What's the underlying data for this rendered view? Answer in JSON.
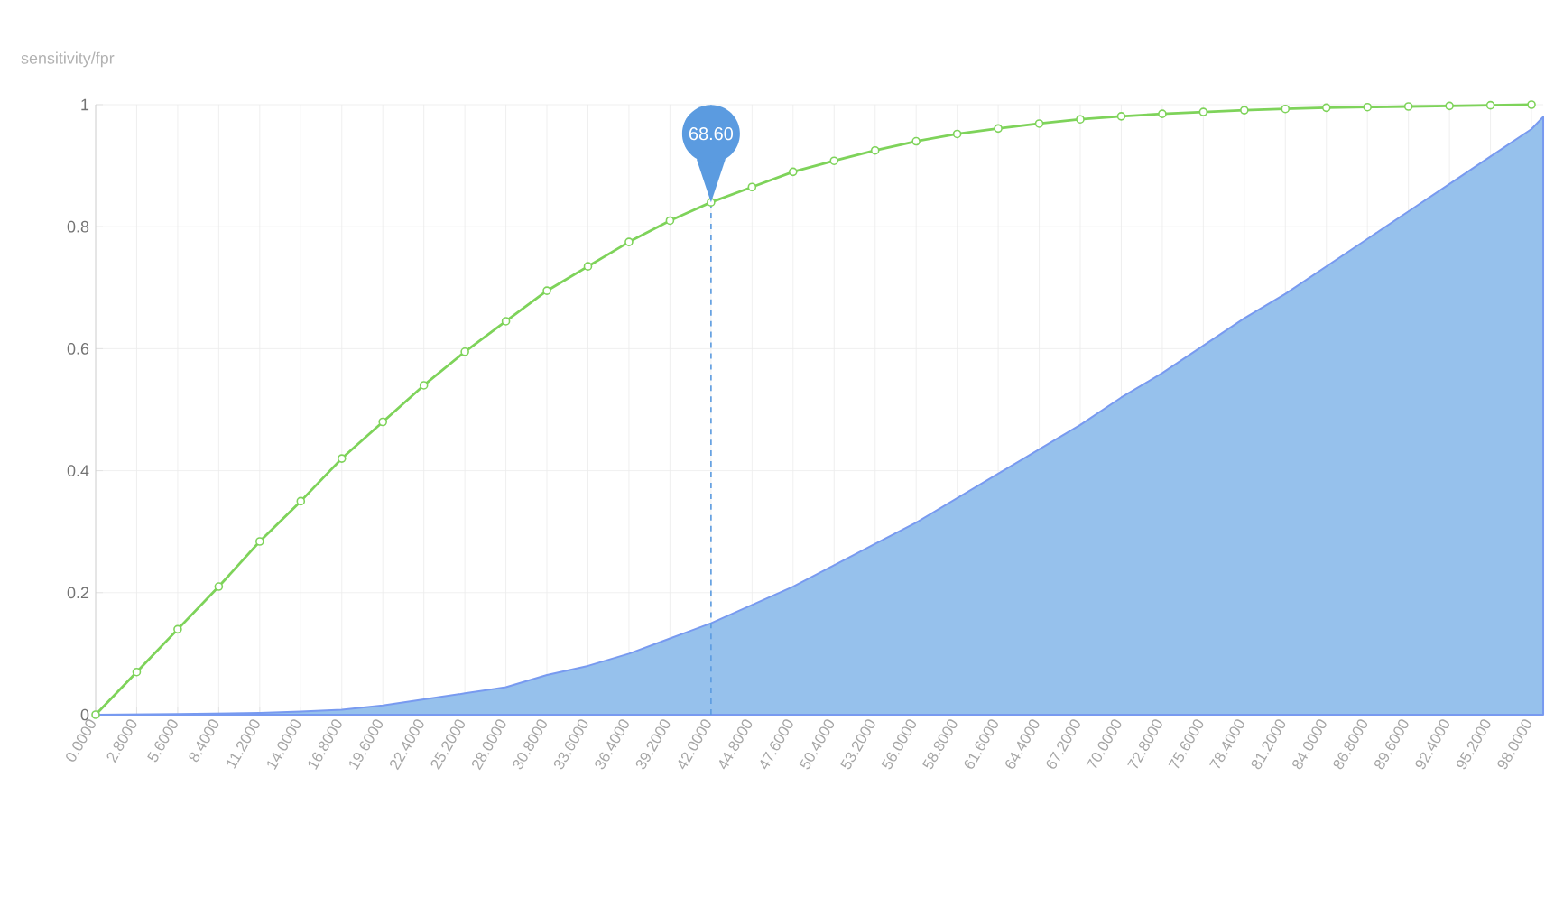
{
  "chart_data": {
    "type": "line",
    "ylabel": "sensitivity/fpr",
    "xlim": [
      0,
      98.8
    ],
    "xticks": [
      {
        "value": 0,
        "label": "0.0000"
      },
      {
        "value": 2.8,
        "label": "2.8000"
      },
      {
        "value": 5.6,
        "label": "5.6000"
      },
      {
        "value": 8.4,
        "label": "8.4000"
      },
      {
        "value": 11.2,
        "label": "11.2000"
      },
      {
        "value": 14,
        "label": "14.0000"
      },
      {
        "value": 16.8,
        "label": "16.8000"
      },
      {
        "value": 19.6,
        "label": "19.6000"
      },
      {
        "value": 22.4,
        "label": "22.4000"
      },
      {
        "value": 25.2,
        "label": "25.2000"
      },
      {
        "value": 28,
        "label": "28.0000"
      },
      {
        "value": 30.8,
        "label": "30.8000"
      },
      {
        "value": 33.6,
        "label": "33.6000"
      },
      {
        "value": 36.4,
        "label": "36.4000"
      },
      {
        "value": 39.2,
        "label": "39.2000"
      },
      {
        "value": 42,
        "label": "42.0000"
      },
      {
        "value": 44.8,
        "label": "44.8000"
      },
      {
        "value": 47.6,
        "label": "47.6000"
      },
      {
        "value": 50.4,
        "label": "50.4000"
      },
      {
        "value": 53.2,
        "label": "53.2000"
      },
      {
        "value": 56,
        "label": "56.0000"
      },
      {
        "value": 58.8,
        "label": "58.8000"
      },
      {
        "value": 61.6,
        "label": "61.6000"
      },
      {
        "value": 64.4,
        "label": "64.4000"
      },
      {
        "value": 67.2,
        "label": "67.2000"
      },
      {
        "value": 70,
        "label": "70.0000"
      },
      {
        "value": 72.8,
        "label": "72.8000"
      },
      {
        "value": 75.6,
        "label": "75.6000"
      },
      {
        "value": 78.4,
        "label": "78.4000"
      },
      {
        "value": 81.2,
        "label": "81.2000"
      },
      {
        "value": 84,
        "label": "84.0000"
      },
      {
        "value": 86.8,
        "label": "86.8000"
      },
      {
        "value": 89.6,
        "label": "89.6000"
      },
      {
        "value": 92.4,
        "label": "92.4000"
      },
      {
        "value": 95.2,
        "label": "95.2000"
      },
      {
        "value": 98,
        "label": "98.0000"
      }
    ],
    "ylim": [
      0,
      1
    ],
    "yticks": [
      0,
      0.2,
      0.4,
      0.6,
      0.8,
      1
    ],
    "grid": true,
    "series": [
      {
        "type": "area",
        "color": "#96c1ec",
        "marker": "none",
        "x": [
          0,
          5.6,
          11.2,
          14,
          16.8,
          19.6,
          22.4,
          25.2,
          28,
          30.8,
          33.6,
          36.4,
          39.2,
          42,
          44.8,
          47.6,
          50.4,
          53.2,
          56,
          58.8,
          61.6,
          64.4,
          67.2,
          70,
          72.8,
          75.6,
          78.4,
          81.2,
          84,
          86.8,
          89.6,
          92.4,
          95.2,
          98,
          98.8
        ],
        "values": [
          0,
          0.001,
          0.003,
          0.005,
          0.008,
          0.015,
          0.025,
          0.035,
          0.045,
          0.065,
          0.08,
          0.1,
          0.125,
          0.15,
          0.18,
          0.21,
          0.245,
          0.28,
          0.315,
          0.355,
          0.395,
          0.435,
          0.475,
          0.52,
          0.56,
          0.605,
          0.65,
          0.69,
          0.735,
          0.78,
          0.825,
          0.87,
          0.915,
          0.96,
          0.98
        ]
      },
      {
        "color": "#7ed35a",
        "marker": "circle",
        "x": [
          0,
          2.8,
          5.6,
          8.4,
          11.2,
          14,
          16.8,
          19.6,
          22.4,
          25.2,
          28,
          30.8,
          33.6,
          36.4,
          39.2,
          42,
          44.8,
          47.6,
          50.4,
          53.2,
          56,
          58.8,
          61.6,
          64.4,
          67.2,
          70,
          72.8,
          75.6,
          78.4,
          81.2,
          84,
          86.8,
          89.6,
          92.4,
          95.2,
          98
        ],
        "values": [
          0,
          0.07,
          0.14,
          0.21,
          0.284,
          0.35,
          0.42,
          0.48,
          0.54,
          0.595,
          0.645,
          0.695,
          0.735,
          0.775,
          0.81,
          0.84,
          0.865,
          0.89,
          0.908,
          0.925,
          0.94,
          0.952,
          0.961,
          0.969,
          0.976,
          0.981,
          0.985,
          0.988,
          0.991,
          0.993,
          0.995,
          0.996,
          0.997,
          0.998,
          0.999,
          1.0
        ]
      }
    ],
    "ref_lines": [
      {
        "axis": "x",
        "value": 42,
        "color": "#5b9be0",
        "line_style": "dashed"
      }
    ],
    "annotations": [
      "68.60"
    ]
  }
}
